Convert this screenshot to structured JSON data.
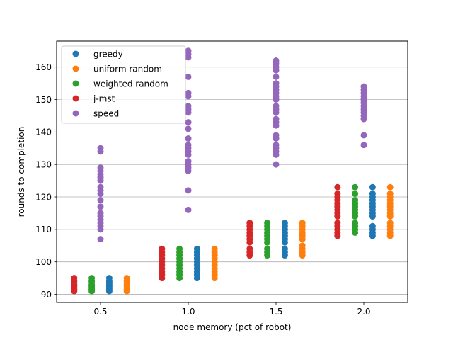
{
  "chart_data": {
    "type": "scatter",
    "title": "",
    "xlabel": "node memory (pct of robot)",
    "ylabel": "rounds to completion",
    "xlim": [
      0.25,
      2.25
    ],
    "ylim": [
      87.5,
      168
    ],
    "xticks": [
      0.5,
      1.0,
      1.5,
      2.0
    ],
    "xtick_labels": [
      "0.5",
      "1.0",
      "1.5",
      "2.0"
    ],
    "yticks": [
      90,
      100,
      110,
      120,
      130,
      140,
      150,
      160
    ],
    "ytick_labels": [
      "90",
      "100",
      "110",
      "120",
      "130",
      "140",
      "150",
      "160"
    ],
    "grid": "horizontal",
    "legend_position": "top-left",
    "series": [
      {
        "name": "greedy",
        "color": "#1f77b4",
        "groups": [
          {
            "x": 0.55,
            "y": [
              91,
              91.5,
              92,
              92.5,
              93,
              93.5,
              94,
              95
            ]
          },
          {
            "x": 1.05,
            "y": [
              95,
              96,
              97,
              98,
              99,
              100,
              101,
              102,
              103,
              104
            ]
          },
          {
            "x": 1.55,
            "y": [
              102,
              103,
              104,
              106,
              107,
              108,
              109,
              110,
              111,
              112
            ]
          },
          {
            "x": 2.05,
            "y": [
              108,
              109,
              110,
              111,
              114,
              115,
              116,
              117,
              118,
              119,
              120,
              121,
              123
            ]
          }
        ]
      },
      {
        "name": "uniform random",
        "color": "#ff7f0e",
        "groups": [
          {
            "x": 0.65,
            "y": [
              91,
              91.5,
              92,
              92.5,
              93,
              94,
              95
            ]
          },
          {
            "x": 1.15,
            "y": [
              95,
              96,
              97,
              98,
              99,
              100,
              101,
              102,
              103,
              104
            ]
          },
          {
            "x": 1.65,
            "y": [
              102,
              103,
              104,
              105,
              107,
              108,
              109,
              110,
              111,
              112
            ]
          },
          {
            "x": 2.15,
            "y": [
              108,
              109,
              110,
              111,
              112,
              114,
              115,
              116,
              117,
              118,
              119,
              120,
              121,
              123
            ]
          }
        ]
      },
      {
        "name": "weighted random",
        "color": "#2ca02c",
        "groups": [
          {
            "x": 0.45,
            "y": [
              91,
              91.5,
              92,
              92.5,
              93,
              94,
              95
            ]
          },
          {
            "x": 0.95,
            "y": [
              95,
              96,
              97,
              98,
              99,
              100,
              101,
              102,
              103,
              104
            ]
          },
          {
            "x": 1.45,
            "y": [
              102,
              103,
              104,
              106,
              107,
              108,
              109,
              110,
              111,
              112
            ]
          },
          {
            "x": 1.95,
            "y": [
              109,
              110,
              111,
              112,
              114,
              115,
              116,
              117,
              118,
              119,
              121,
              123
            ]
          }
        ]
      },
      {
        "name": "j-mst",
        "color": "#d62728",
        "groups": [
          {
            "x": 0.35,
            "y": [
              91,
              91.5,
              92,
              92.5,
              93,
              94,
              95
            ]
          },
          {
            "x": 0.85,
            "y": [
              95,
              96,
              97,
              98,
              99,
              100,
              101,
              102,
              103,
              104
            ]
          },
          {
            "x": 1.35,
            "y": [
              102,
              103,
              104,
              106,
              107,
              108,
              109,
              110,
              111,
              112
            ]
          },
          {
            "x": 1.85,
            "y": [
              108,
              109,
              110,
              111,
              112,
              114,
              115,
              116,
              117,
              118,
              119,
              120,
              121,
              123
            ]
          }
        ]
      },
      {
        "name": "speed",
        "color": "#9467bd",
        "groups": [
          {
            "x": 0.5,
            "y": [
              107,
              110,
              111,
              112,
              113,
              114,
              115,
              117,
              119,
              121,
              122,
              123,
              125,
              126,
              127,
              128,
              129,
              134,
              135
            ]
          },
          {
            "x": 1.0,
            "y": [
              116,
              122,
              128,
              129,
              130,
              131,
              133,
              134,
              135,
              136,
              138,
              141,
              143,
              146,
              147,
              148,
              151,
              152,
              157,
              163,
              164,
              165
            ]
          },
          {
            "x": 1.5,
            "y": [
              130,
              133,
              134,
              135,
              136,
              138,
              139,
              142,
              143,
              144,
              146,
              147,
              148,
              150,
              151,
              152,
              153,
              154,
              155,
              157,
              159,
              160,
              161,
              162
            ]
          },
          {
            "x": 2.0,
            "y": [
              136,
              139,
              144,
              145,
              146,
              147,
              148,
              149,
              150,
              151,
              152,
              153,
              154
            ]
          }
        ]
      }
    ]
  }
}
